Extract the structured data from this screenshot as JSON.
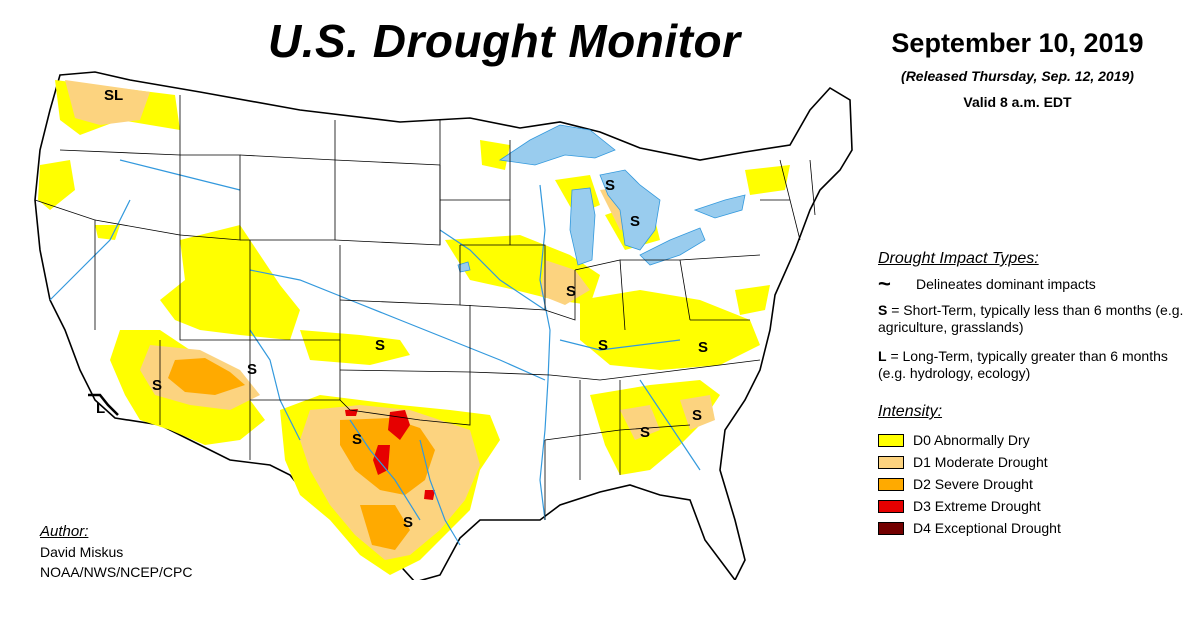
{
  "header": {
    "title": "U.S. Drought Monitor",
    "date": "September 10, 2019",
    "released": "(Released Thursday, Sep. 12, 2019)",
    "valid": "Valid 8 a.m. EDT"
  },
  "impact_legend": {
    "heading": "Drought Impact Types:",
    "delineates": "Delineates dominant impacts",
    "short_key": "S",
    "short_text": " = Short-Term, typically less than 6 months (e.g. agriculture, grasslands)",
    "long_key": "L",
    "long_text": " = Long-Term, typically greater than 6 months (e.g. hydrology, ecology)"
  },
  "intensity_legend": {
    "heading": "Intensity:",
    "items": [
      {
        "label": "D0 Abnormally Dry",
        "color": "#ffff00"
      },
      {
        "label": "D1 Moderate Drought",
        "color": "#fcd37f"
      },
      {
        "label": "D2 Severe Drought",
        "color": "#ffaa00"
      },
      {
        "label": "D3 Extreme Drought",
        "color": "#e60000"
      },
      {
        "label": "D4 Exceptional Drought",
        "color": "#730000"
      }
    ]
  },
  "author": {
    "label": "Author:",
    "name": "David Miskus",
    "org": "NOAA/NWS/NCEP/CPC"
  },
  "map": {
    "lake_color": "#99ccee",
    "river_color": "#3399dd",
    "impact_labels": [
      "SL",
      "L",
      "S",
      "S",
      "S",
      "S",
      "S",
      "S",
      "S",
      "S",
      "S",
      "S",
      "S",
      "S"
    ]
  }
}
